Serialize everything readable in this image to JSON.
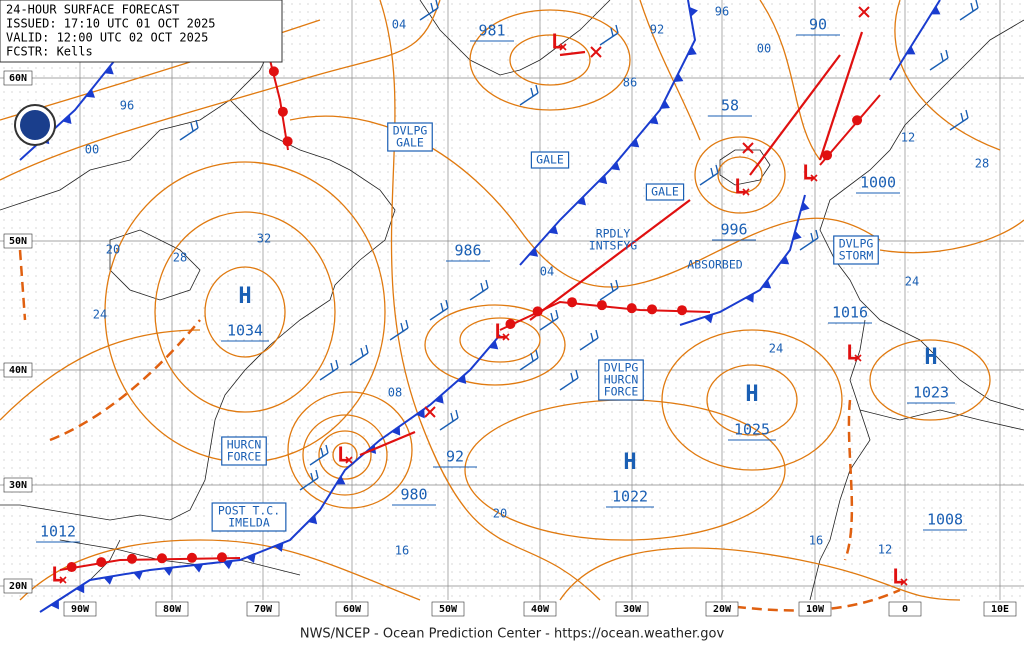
{
  "header": {
    "title": "24-HOUR SURFACE FORECAST",
    "issued": "ISSUED: 17:10 UTC 01 OCT 2025",
    "valid": "VALID:  12:00 UTC 02 OCT 2025",
    "forecaster": "FCSTR:  Kells"
  },
  "footer": "NWS/NCEP - Ocean Prediction Center - https://ocean.weather.gov",
  "latitude_labels": [
    "60N",
    "50N",
    "40N",
    "30N",
    "20N"
  ],
  "longitude_labels": [
    "90W",
    "80W",
    "70W",
    "60W",
    "50W",
    "40W",
    "30W",
    "20W",
    "10W",
    "0",
    "10E"
  ],
  "highs": [
    {
      "symbol": "H",
      "pressure": "1034"
    },
    {
      "symbol": "H",
      "pressure": "1025"
    },
    {
      "symbol": "H",
      "pressure": "1022"
    },
    {
      "symbol": "H",
      "pressure": "1023"
    }
  ],
  "lows": [
    "L",
    "L",
    "L",
    "L",
    "L",
    "L",
    "L",
    "L"
  ],
  "pressure_labels": [
    "1012",
    "980",
    "92",
    "986",
    "996",
    "58",
    "1000",
    "1016",
    "90",
    "981",
    "1008"
  ],
  "isobar_labels": [
    "04",
    "96",
    "00",
    "20",
    "28",
    "32",
    "24",
    "08",
    "04",
    "86",
    "92",
    "96",
    "00",
    "12",
    "28",
    "24",
    "24",
    "20",
    "16",
    "16",
    "12"
  ],
  "warnings": [
    {
      "lines": [
        "DVLPG",
        "GALE"
      ]
    },
    {
      "lines": [
        "GALE"
      ]
    },
    {
      "lines": [
        "GALE"
      ]
    },
    {
      "lines": [
        "DVLPG",
        "STORM"
      ]
    },
    {
      "lines": [
        "DVLPG",
        "HURCN",
        "FORCE"
      ]
    },
    {
      "lines": [
        "HURCN",
        "FORCE"
      ]
    },
    {
      "lines": [
        "POST T.C.",
        "IMELDA"
      ]
    }
  ],
  "notes": [
    {
      "lines": [
        "RPDLY",
        "INTSFYG"
      ]
    },
    {
      "lines": [
        "ABSORBED"
      ]
    }
  ]
}
